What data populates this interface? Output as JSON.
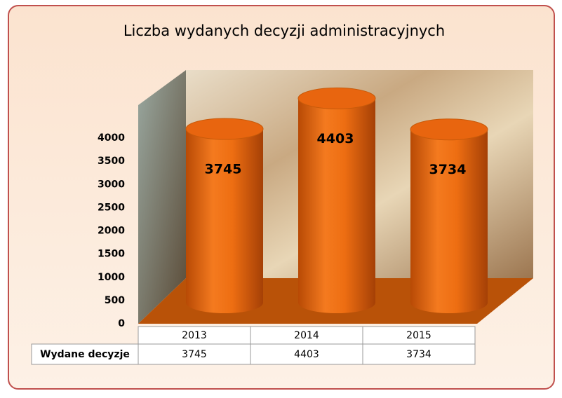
{
  "chart_data": {
    "type": "bar3d",
    "title": "Liczba wydanych decyzji administracyjnych",
    "categories": [
      "2013",
      "2014",
      "2015"
    ],
    "series": [
      {
        "name": "Wydane decyzje",
        "color": "#e8650f",
        "values": [
          3745,
          4403,
          3734
        ]
      }
    ],
    "ylim": [
      0,
      4500
    ],
    "yticks": [
      0,
      500,
      1000,
      1500,
      2000,
      2500,
      3000,
      3500,
      4000
    ],
    "data_table": true
  }
}
